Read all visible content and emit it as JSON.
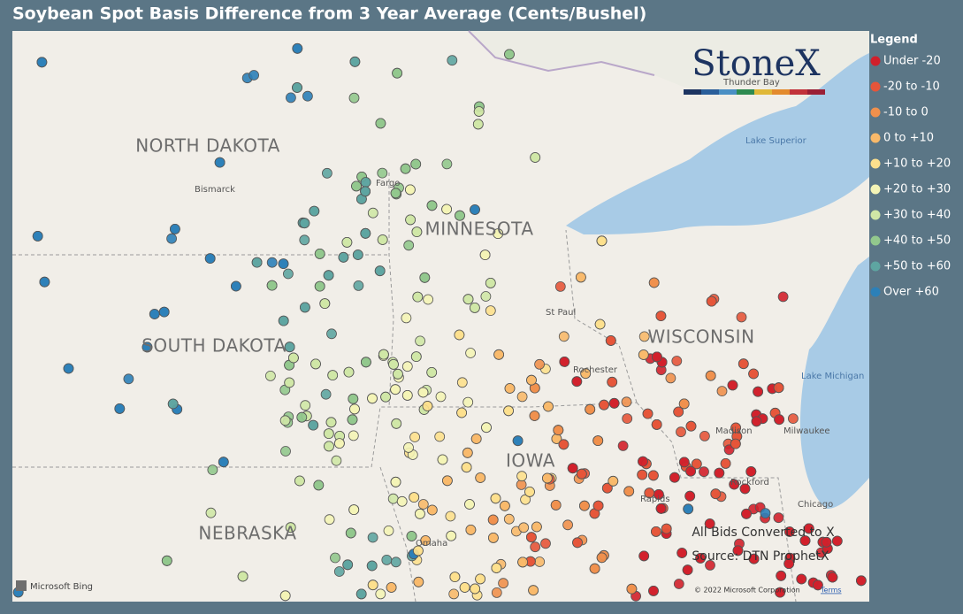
{
  "title": "Soybean Spot Basis Difference from 3 Year Average (Cents/Bushel)",
  "legend": {
    "title": "Legend",
    "items": [
      {
        "label": "Under -20",
        "color": "#d1202b"
      },
      {
        "label": "-20 to -10",
        "color": "#e6553a"
      },
      {
        "label": "-10 to 0",
        "color": "#f0904c"
      },
      {
        "label": "0 to +10",
        "color": "#f8b96a"
      },
      {
        "label": "+10 to +20",
        "color": "#fde08d"
      },
      {
        "label": "+20 to +30",
        "color": "#f4f4b6"
      },
      {
        "label": "+30 to +40",
        "color": "#cfe7a6"
      },
      {
        "label": "+40 to +50",
        "color": "#92c88d"
      },
      {
        "label": "+50 to +60",
        "color": "#5ea5a1"
      },
      {
        "label": "Over +60",
        "color": "#2c80b8"
      }
    ]
  },
  "map_labels": {
    "states": [
      "NORTH DAKOTA",
      "MINNESOTA",
      "SOUTH DAKOTA",
      "WISCONSIN",
      "NEBRASKA",
      "IOWA"
    ],
    "cities": [
      "Bismarck",
      "Fargo",
      "St Paul",
      "Rochester",
      "Madison",
      "Milwaukee",
      "Rockford",
      "Chicago",
      "Omaha",
      "Rapids",
      "Thunder Bay"
    ],
    "water": [
      "Lake Superior",
      "Lake Michigan"
    ]
  },
  "logo": "StoneX",
  "notes": [
    "All Bids Converted to X",
    "Source: DTN ProphetX"
  ],
  "attribution": {
    "provider": "Microsoft Bing",
    "copyright": "© 2022 Microsoft Corporation",
    "terms": "Terms"
  }
}
